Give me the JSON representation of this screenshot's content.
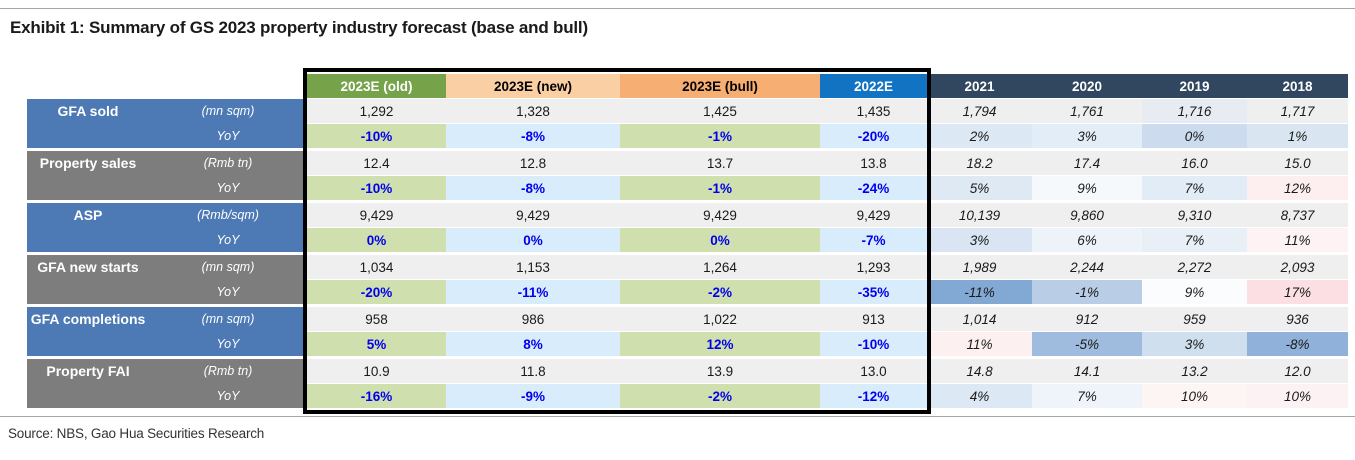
{
  "page": {
    "title": "Exhibit 1: Summary of GS 2023 property industry forecast (base and bull)",
    "source": "Source: NBS, Gao Hua Securities Research"
  },
  "palette": {
    "yoy_green": "#cfe0ae",
    "yoy_blue": "#d9ecfb",
    "value_bg": "#efefef",
    "yoy_text_blue": "#0000ee",
    "label_blue": "#4d79b5",
    "label_gray": "#7d7d7d"
  },
  "table": {
    "columns": [
      {
        "label": "2023E (old)",
        "bg": "#76a24a",
        "fg": "#ffffff",
        "hist": false
      },
      {
        "label": "2023E (new)",
        "bg": "#fbcfa4",
        "fg": "#000000",
        "hist": false
      },
      {
        "label": "2023E (bull)",
        "bg": "#f6ae72",
        "fg": "#000000",
        "hist": false
      },
      {
        "label": "2022E",
        "bg": "#1173c2",
        "fg": "#ffffff",
        "hist": false
      },
      {
        "label": "2021",
        "bg": "#31465f",
        "fg": "#ffffff",
        "hist": true
      },
      {
        "label": "2020",
        "bg": "#31465f",
        "fg": "#ffffff",
        "hist": true
      },
      {
        "label": "2019",
        "bg": "#31465f",
        "fg": "#ffffff",
        "hist": true
      },
      {
        "label": "2018",
        "bg": "#31465f",
        "fg": "#ffffff",
        "hist": true
      }
    ],
    "forecast_yoy_pattern": [
      "yoy_green",
      "yoy_blue",
      "yoy_green",
      "yoy_blue"
    ],
    "rows": [
      {
        "metric": "GFA sold",
        "unit": "(mn sqm)",
        "yoy_label": "YoY",
        "label_color": "label_blue",
        "values": [
          "1,292",
          "1,328",
          "1,425",
          "1,435",
          "1,794",
          "1,761",
          "1,716",
          "1,717"
        ],
        "yoy": [
          "-10%",
          "-8%",
          "-1%",
          "-20%",
          "2%",
          "3%",
          "0%",
          "1%"
        ],
        "hist_val_bg": [
          "#efefef",
          "#efefef",
          "#e7ecf3",
          "#efefef"
        ],
        "hist_yoy_bg": [
          "#dce8f4",
          "#e3edf7",
          "#ccdcee",
          "#d9e6f2"
        ]
      },
      {
        "metric": "Property sales",
        "unit": "(Rmb tn)",
        "yoy_label": "YoY",
        "label_color": "label_gray",
        "values": [
          "12.4",
          "12.8",
          "13.7",
          "13.8",
          "18.2",
          "17.4",
          "16.0",
          "15.0"
        ],
        "yoy": [
          "-10%",
          "-8%",
          "-1%",
          "-24%",
          "5%",
          "9%",
          "7%",
          "12%"
        ],
        "hist_val_bg": [
          "#efefef",
          "#efefef",
          "#efefef",
          "#efefef"
        ],
        "hist_yoy_bg": [
          "#dfe9f4",
          "#f6f9fc",
          "#e2ecf6",
          "#fdeff0"
        ]
      },
      {
        "metric": "ASP",
        "unit": "(Rmb/sqm)",
        "yoy_label": "YoY",
        "label_color": "label_blue",
        "values": [
          "9,429",
          "9,429",
          "9,429",
          "9,429",
          "10,139",
          "9,860",
          "9,310",
          "8,737"
        ],
        "yoy": [
          "0%",
          "0%",
          "0%",
          "-7%",
          "3%",
          "6%",
          "7%",
          "11%"
        ],
        "hist_val_bg": [
          "#efefef",
          "#efefef",
          "#efefef",
          "#efefef"
        ],
        "hist_yoy_bg": [
          "#d9e5f2",
          "#edf3f9",
          "#e8eff7",
          "#fdf3f4"
        ]
      },
      {
        "metric": "GFA new starts",
        "unit": "(mn sqm)",
        "yoy_label": "YoY",
        "label_color": "label_gray",
        "values": [
          "1,034",
          "1,153",
          "1,264",
          "1,293",
          "1,989",
          "2,244",
          "2,272",
          "2,093"
        ],
        "yoy": [
          "-20%",
          "-11%",
          "-2%",
          "-35%",
          "-11%",
          "-1%",
          "9%",
          "17%"
        ],
        "hist_val_bg": [
          "#efefef",
          "#efefef",
          "#efefef",
          "#efefef"
        ],
        "hist_yoy_bg": [
          "#82a9d4",
          "#b9cde7",
          "#fbfcfd",
          "#fbdfe2"
        ]
      },
      {
        "metric": "GFA completions",
        "unit": "(mn sqm)",
        "yoy_label": "YoY",
        "label_color": "label_blue",
        "values": [
          "958",
          "986",
          "1,022",
          "913",
          "1,014",
          "912",
          "959",
          "936"
        ],
        "yoy": [
          "5%",
          "8%",
          "12%",
          "-10%",
          "11%",
          "-5%",
          "3%",
          "-8%"
        ],
        "hist_val_bg": [
          "#efefef",
          "#efefef",
          "#efefef",
          "#efefef"
        ],
        "hist_yoy_bg": [
          "#fdf0f1",
          "#9fbcdf",
          "#cfdfee",
          "#8fb1da"
        ]
      },
      {
        "metric": "Property FAI",
        "unit": "(Rmb tn)",
        "yoy_label": "YoY",
        "label_color": "label_gray",
        "values": [
          "10.9",
          "11.8",
          "13.9",
          "13.0",
          "14.8",
          "14.1",
          "13.2",
          "12.0"
        ],
        "yoy": [
          "-16%",
          "-9%",
          "-2%",
          "-12%",
          "4%",
          "7%",
          "10%",
          "10%"
        ],
        "hist_val_bg": [
          "#efefef",
          "#efefef",
          "#efefef",
          "#efefef"
        ],
        "hist_yoy_bg": [
          "#dce8f4",
          "#eef4fa",
          "#fdf4f4",
          "#fdf2f3"
        ]
      }
    ]
  }
}
